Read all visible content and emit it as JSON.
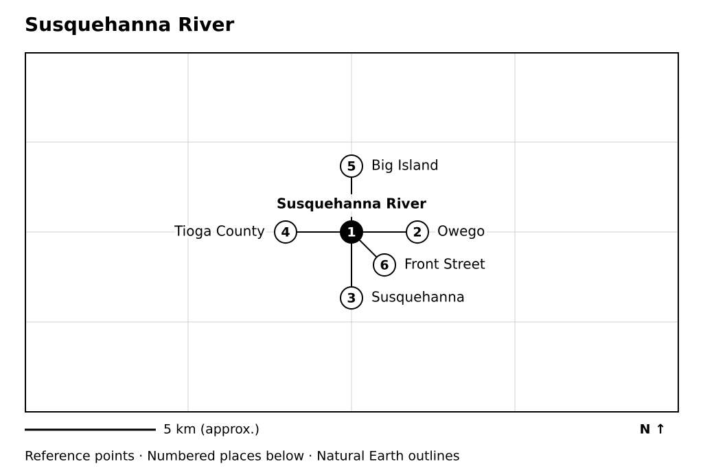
{
  "header": {
    "title": "Susquehanna River"
  },
  "map": {
    "center_label": "Susquehanna River",
    "nodes": [
      {
        "number": 1
      },
      {
        "number": 2,
        "label": "Owego"
      },
      {
        "number": 3,
        "label": "Susquehanna"
      },
      {
        "number": 4,
        "label": "Tioga County"
      },
      {
        "number": 5,
        "label": "Big Island"
      },
      {
        "number": 6,
        "label": "Front Street"
      }
    ]
  },
  "scale_bar": {
    "label": "5 km (approx.)"
  },
  "north_arrow": {
    "label": "N ↑"
  },
  "footer": {
    "text": "Reference points · Numbered places below · Natural Earth outlines"
  }
}
